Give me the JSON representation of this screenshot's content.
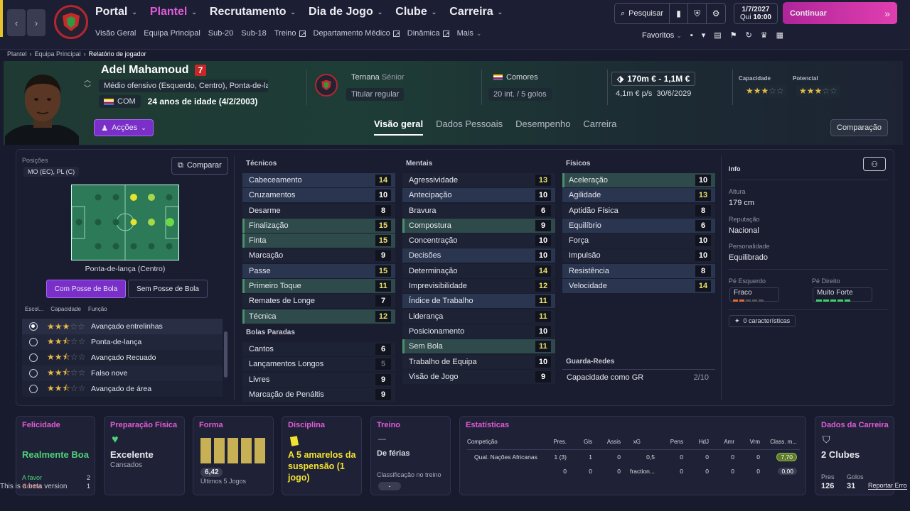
{
  "topbar": {
    "nav": [
      {
        "label": "Portal",
        "active": false
      },
      {
        "label": "Plantel",
        "active": true
      },
      {
        "label": "Recrutamento",
        "active": false
      },
      {
        "label": "Dia de Jogo",
        "active": false
      },
      {
        "label": "Clube",
        "active": false
      },
      {
        "label": "Carreira",
        "active": false
      }
    ],
    "subnav": [
      "Visão Geral",
      "Equipa Principal",
      "Sub-20",
      "Sub-18",
      "Treino",
      "Departamento Médico",
      "Dinâmica",
      "Mais"
    ],
    "search_label": "Pesquisar",
    "date": "1/7/2027",
    "day_time_day": "Qui",
    "day_time_time": "10:00",
    "continue_label": "Continuar",
    "favorites_label": "Favoritos"
  },
  "breadcrumb": [
    "Plantel",
    "Equipa Principal",
    "Relatório de jogador"
  ],
  "player": {
    "name": "Adel Mahamoud",
    "number": "7",
    "position": "Médio ofensivo (Esquerdo, Centro), Ponta-de-lan…",
    "nation_code": "COM",
    "age": "24 anos de idade (4/2/2003)",
    "club": "Ternana",
    "club_level": "Sénior",
    "squad_status": "Titular regular",
    "nation": "Comores",
    "caps": "20 int. / 5 golos",
    "value": "170m € - 1,1M €",
    "wage": "4,1m € p/s",
    "contract": "30/6/2029",
    "ability_label": "Capacidade",
    "potential_label": "Potencial",
    "ability_stars": 3,
    "potential_stars": 3,
    "actions_label": "Acções"
  },
  "tabs": [
    "Visão geral",
    "Dados Pessoais",
    "Desempenho",
    "Carreira"
  ],
  "compare_btn": "Comparação",
  "positions": {
    "label": "Posições",
    "value": "MO (EC), PL (C)",
    "compare_label": "Comparar",
    "role_caption": "Ponta-de-lança (Centro)",
    "with_ball": "Com Posse de Bola",
    "without_ball": "Sem Posse de Bola",
    "col_choose": "Escol...",
    "col_ability": "Capacidade",
    "col_role": "Função",
    "roles": [
      {
        "name": "Avançado entrelinhas",
        "stars": 3,
        "selected": true
      },
      {
        "name": "Ponta-de-lança",
        "stars": 2.5,
        "selected": false
      },
      {
        "name": "Avançado Recuado",
        "stars": 2.5,
        "selected": false
      },
      {
        "name": "Falso nove",
        "stars": 2.5,
        "selected": false
      },
      {
        "name": "Avançado de área",
        "stars": 2.5,
        "selected": false
      }
    ]
  },
  "technical": {
    "title": "Técnicos",
    "attrs": [
      {
        "name": "Cabeceamento",
        "value": "14",
        "hl": "hb",
        "vc": "y"
      },
      {
        "name": "Cruzamentos",
        "value": "10",
        "hl": "hb",
        "vc": "w"
      },
      {
        "name": "Desarme",
        "value": "8",
        "hl": "",
        "vc": "w"
      },
      {
        "name": "Finalização",
        "value": "15",
        "hl": "hl",
        "vc": "y"
      },
      {
        "name": "Finta",
        "value": "15",
        "hl": "hl",
        "vc": "y"
      },
      {
        "name": "Marcação",
        "value": "9",
        "hl": "",
        "vc": "w"
      },
      {
        "name": "Passe",
        "value": "15",
        "hl": "hb",
        "vc": "y"
      },
      {
        "name": "Primeiro Toque",
        "value": "11",
        "hl": "hl",
        "vc": "y"
      },
      {
        "name": "Remates de Longe",
        "value": "7",
        "hl": "",
        "vc": "w"
      },
      {
        "name": "Técnica",
        "value": "12",
        "hl": "hl",
        "vc": "y"
      }
    ]
  },
  "setpieces": {
    "title": "Bolas Paradas",
    "attrs": [
      {
        "name": "Cantos",
        "value": "6",
        "hl": "",
        "vc": "w"
      },
      {
        "name": "Lançamentos Longos",
        "value": "5",
        "hl": "",
        "vc": "g"
      },
      {
        "name": "Livres",
        "value": "9",
        "hl": "",
        "vc": "w"
      },
      {
        "name": "Marcação de Penáltis",
        "value": "9",
        "hl": "",
        "vc": "w"
      }
    ]
  },
  "mental": {
    "title": "Mentais",
    "attrs": [
      {
        "name": "Agressividade",
        "value": "13",
        "hl": "",
        "vc": "y"
      },
      {
        "name": "Antecipação",
        "value": "10",
        "hl": "hb",
        "vc": "w"
      },
      {
        "name": "Bravura",
        "value": "6",
        "hl": "",
        "vc": "w"
      },
      {
        "name": "Compostura",
        "value": "9",
        "hl": "hl",
        "vc": "w"
      },
      {
        "name": "Concentração",
        "value": "10",
        "hl": "",
        "vc": "w"
      },
      {
        "name": "Decisões",
        "value": "10",
        "hl": "hb",
        "vc": "w"
      },
      {
        "name": "Determinação",
        "value": "14",
        "hl": "",
        "vc": "y"
      },
      {
        "name": "Imprevisibilidade",
        "value": "12",
        "hl": "",
        "vc": "y"
      },
      {
        "name": "Índice de Trabalho",
        "value": "11",
        "hl": "hb",
        "vc": "y"
      },
      {
        "name": "Liderança",
        "value": "11",
        "hl": "",
        "vc": "y"
      },
      {
        "name": "Posicionamento",
        "value": "10",
        "hl": "",
        "vc": "w"
      },
      {
        "name": "Sem Bola",
        "value": "11",
        "hl": "hl",
        "vc": "y"
      },
      {
        "name": "Trabalho de Equipa",
        "value": "10",
        "hl": "",
        "vc": "w"
      },
      {
        "name": "Visão de Jogo",
        "value": "9",
        "hl": "",
        "vc": "w"
      }
    ]
  },
  "physical": {
    "title": "Físicos",
    "attrs": [
      {
        "name": "Aceleração",
        "value": "10",
        "hl": "hl",
        "vc": "w"
      },
      {
        "name": "Agilidade",
        "value": "13",
        "hl": "hb",
        "vc": "y"
      },
      {
        "name": "Aptidão Física",
        "value": "8",
        "hl": "",
        "vc": "w"
      },
      {
        "name": "Equilíbrio",
        "value": "6",
        "hl": "hb",
        "vc": "w"
      },
      {
        "name": "Força",
        "value": "10",
        "hl": "",
        "vc": "w"
      },
      {
        "name": "Impulsão",
        "value": "10",
        "hl": "",
        "vc": "w"
      },
      {
        "name": "Resistência",
        "value": "8",
        "hl": "hb",
        "vc": "w"
      },
      {
        "name": "Velocidade",
        "value": "14",
        "hl": "hb",
        "vc": "y"
      }
    ]
  },
  "goalkeeping": {
    "title": "Guarda-Redes",
    "label": "Capacidade como GR",
    "value": "2/10"
  },
  "info": {
    "title": "Info",
    "height_label": "Altura",
    "height": "179 cm",
    "rep_label": "Reputação",
    "rep": "Nacional",
    "pers_label": "Personalidade",
    "pers": "Equilibrado",
    "left_foot_label": "Pé Esquerdo",
    "left_foot": "Fraco",
    "right_foot_label": "Pé Direito",
    "right_foot": "Muito Forte",
    "traits": "0 características"
  },
  "cards": {
    "happiness": {
      "title": "Felicidade",
      "value": "Realmente Boa",
      "for_label": "A favor",
      "for": "2",
      "against_label": "Contra",
      "against": "1"
    },
    "fitness": {
      "title": "Preparação Física",
      "value": "Excelente",
      "sub": "Cansados"
    },
    "form": {
      "title": "Forma",
      "rating": "6,42",
      "sub": "Últimos 5 Jogos"
    },
    "discipline": {
      "title": "Disciplina",
      "value": "A 5 amarelos da suspensão (1 jogo)"
    },
    "training": {
      "title": "Treino",
      "dash": "—",
      "value": "De férias",
      "rating_label": "Classificação no treino",
      "rating": "-"
    },
    "stats": {
      "title": "Estatísticas",
      "headers": [
        "Competição",
        "Pres.",
        "Gls",
        "Assis",
        "xG",
        "Pens",
        "HdJ",
        "Amr",
        "Vrm",
        "Class. m..."
      ],
      "rows": [
        [
          "Qual. Nações Africanas",
          "1 (3)",
          "1",
          "0",
          "0,5",
          "0",
          "0",
          "0",
          "0",
          "7,70"
        ],
        [
          "",
          "0",
          "0",
          "0",
          "fraction...",
          "0",
          "0",
          "0",
          "0",
          "0,00"
        ]
      ]
    },
    "career": {
      "title": "Dados da Carreira",
      "value": "2 Clubes",
      "apps_label": "Pres",
      "apps": "126",
      "goals_label": "Golos",
      "goals": "31",
      "report": "Reportar Erro"
    }
  },
  "beta_text": "This is a beta version"
}
